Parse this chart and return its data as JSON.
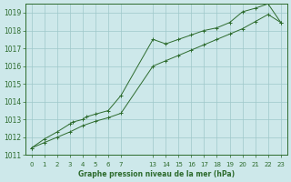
{
  "title": "Graphe pression niveau de la mer (hPa)",
  "bg_color": "#cde8ea",
  "line_color": "#2d6b2d",
  "grid_color": "#9ec8ca",
  "text_color": "#2d6b2d",
  "ylim": [
    1011,
    1019.5
  ],
  "yticks": [
    1011,
    1012,
    1013,
    1014,
    1015,
    1016,
    1017,
    1018,
    1019
  ],
  "series1_x": [
    0,
    1,
    2,
    3,
    3.2,
    4,
    4.3,
    5,
    6,
    7,
    13,
    14,
    15,
    16,
    17,
    18,
    19,
    20,
    21,
    22,
    23
  ],
  "series1_y": [
    1011.4,
    1011.9,
    1012.3,
    1012.75,
    1012.85,
    1013.0,
    1013.15,
    1013.3,
    1013.5,
    1014.35,
    1017.5,
    1017.25,
    1017.5,
    1017.75,
    1018.0,
    1018.15,
    1018.45,
    1019.05,
    1019.25,
    1019.5,
    1018.45
  ],
  "series2_x": [
    0,
    1,
    2,
    3,
    4,
    5,
    6,
    7,
    13,
    14,
    15,
    16,
    17,
    18,
    19,
    20,
    21,
    22,
    23
  ],
  "series2_y": [
    1011.4,
    1011.7,
    1012.0,
    1012.3,
    1012.65,
    1012.9,
    1013.1,
    1013.35,
    1016.0,
    1016.3,
    1016.6,
    1016.9,
    1017.2,
    1017.5,
    1017.8,
    1018.1,
    1018.5,
    1018.9,
    1018.45
  ],
  "xtick_positions": [
    0,
    1,
    2,
    3,
    4,
    5,
    6,
    7,
    13,
    14,
    15,
    16,
    17,
    18,
    19,
    20,
    21,
    22,
    23
  ],
  "xtick_labels": [
    "0",
    "1",
    "2",
    "3",
    "4",
    "5",
    "6",
    "7",
    "13",
    "14",
    "15",
    "16",
    "17",
    "18",
    "19",
    "20",
    "21",
    "22",
    "23"
  ]
}
